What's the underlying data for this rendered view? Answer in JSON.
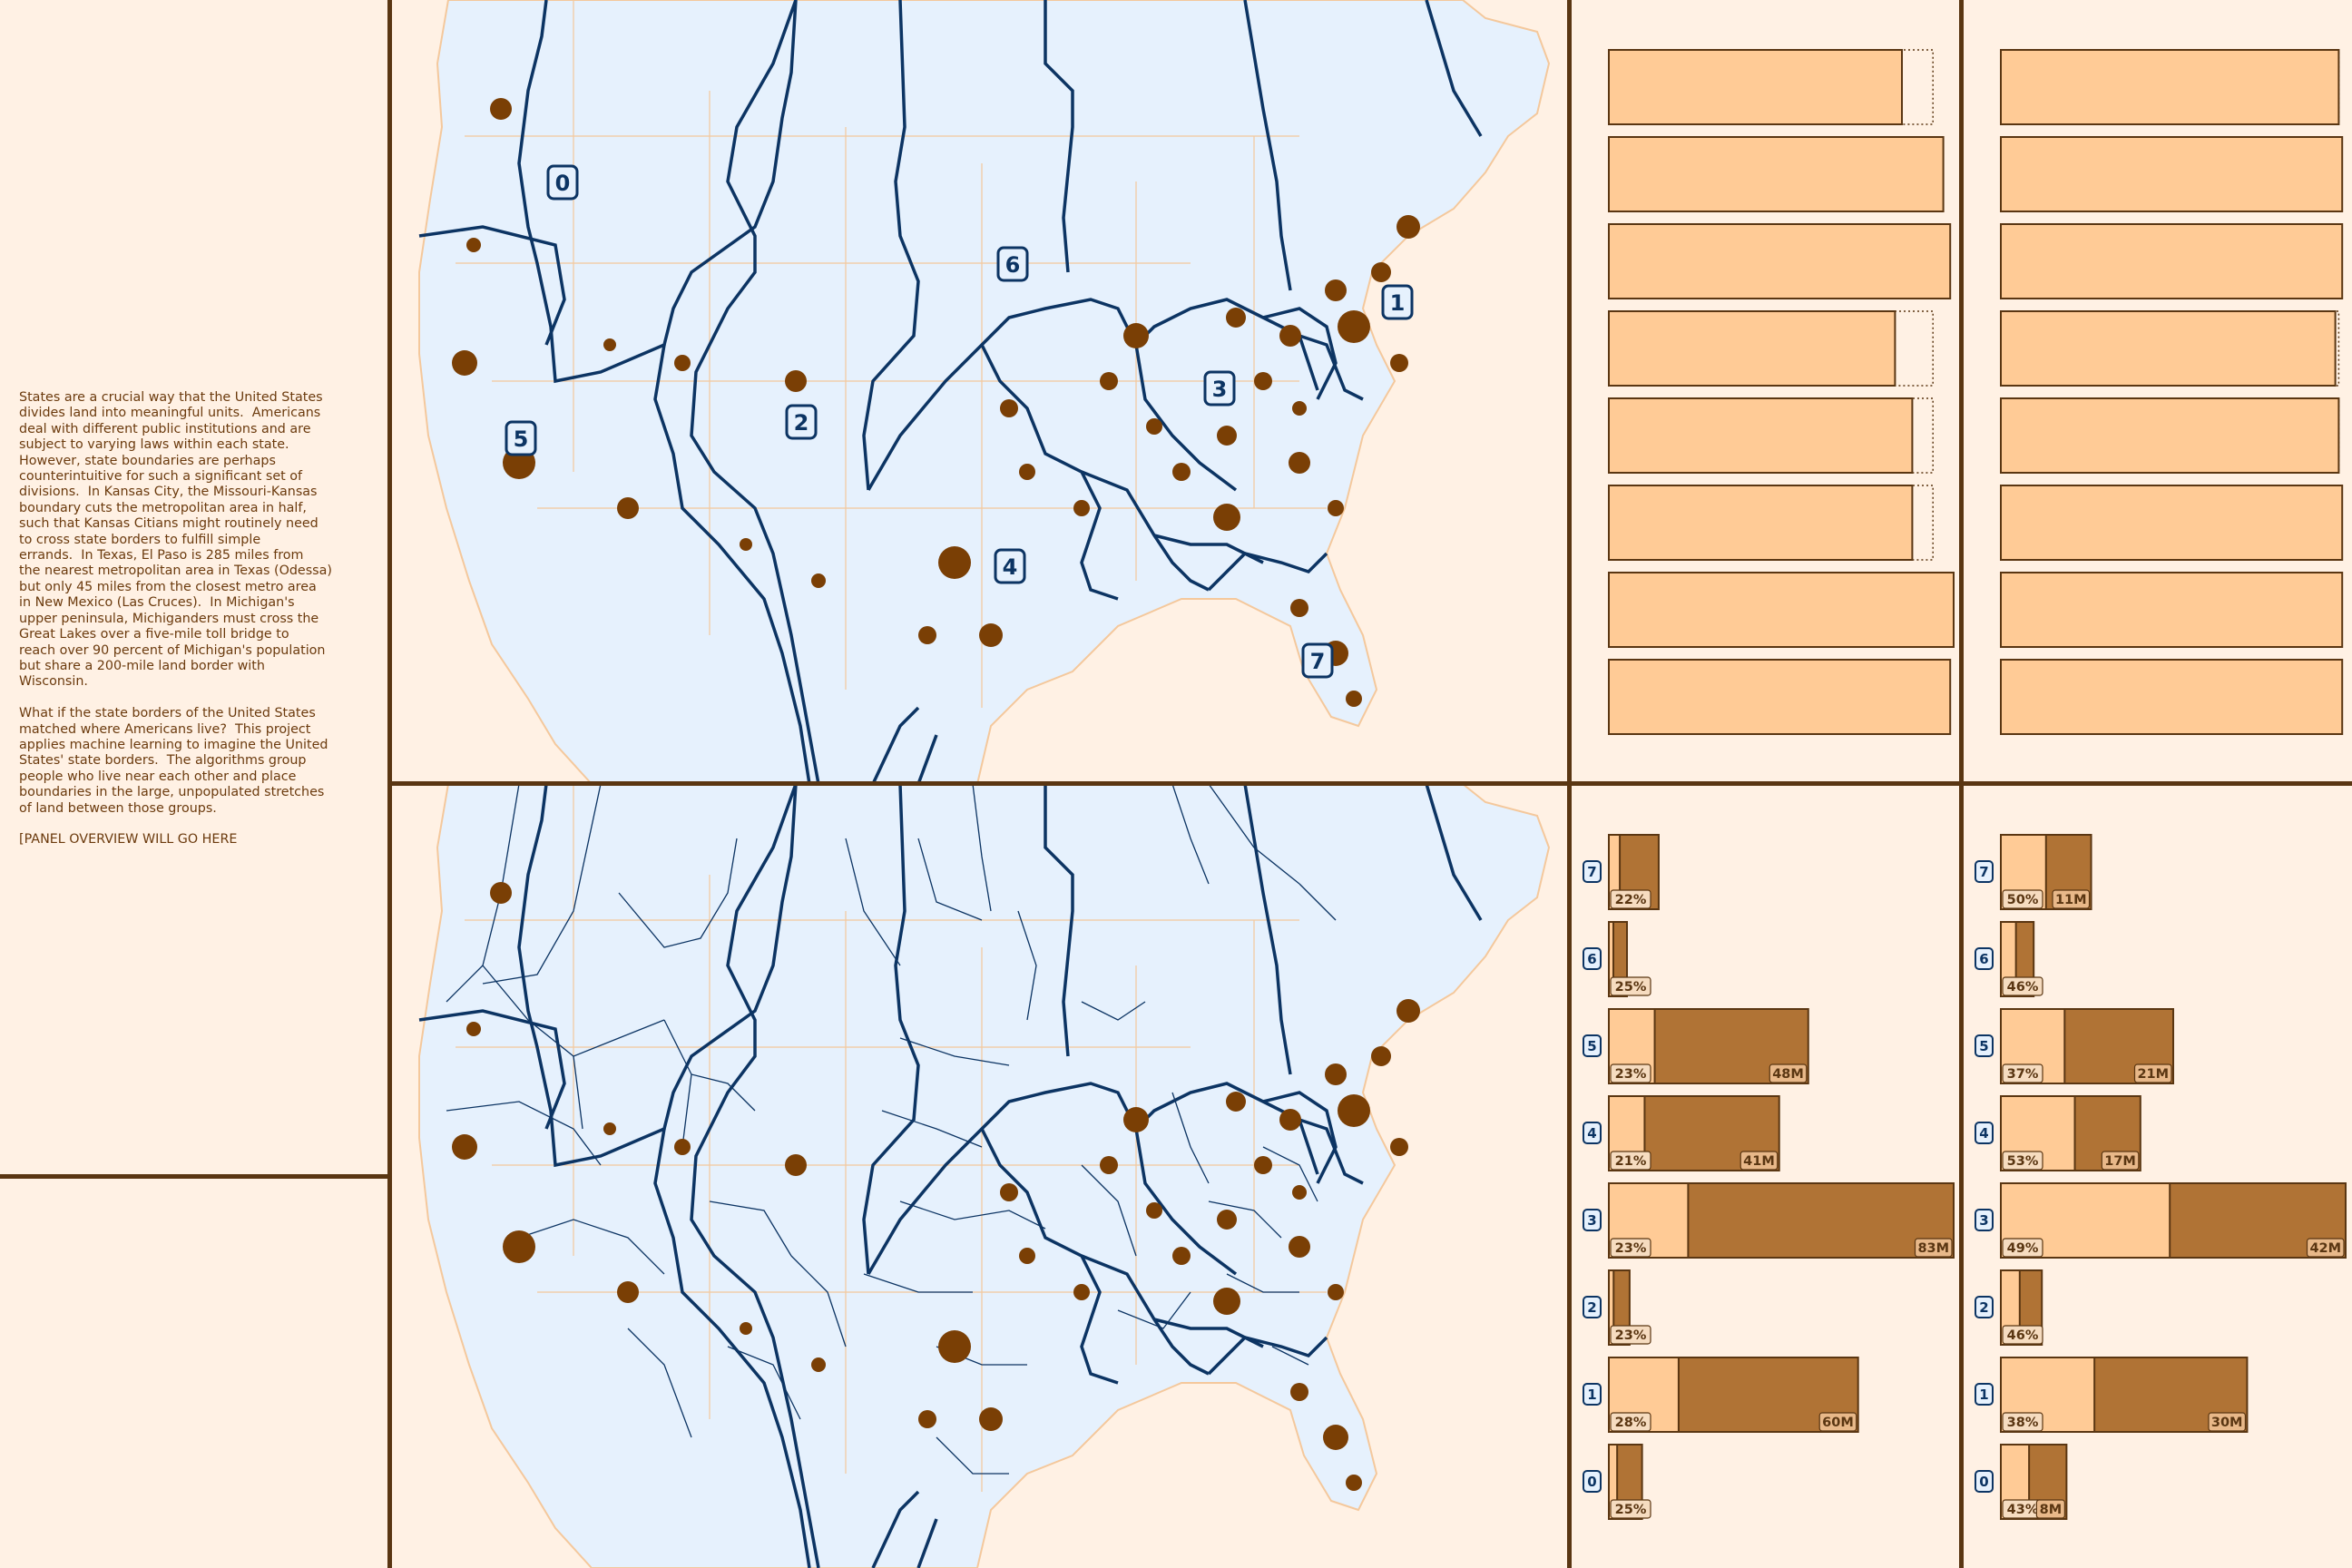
{
  "intro": {
    "text": "States are a crucial way that the United States\ndivides land into meaningful units.  Americans\ndeal with different public institutions and are\nsubject to varying laws within each state.\nHowever, state boundaries are perhaps\ncounterintuitive for such a significant set of\ndivisions.  In Kansas City, the Missouri-Kansas\nboundary cuts the metropolitan area in half,\nsuch that Kansas Citians might routinely need\nto cross state borders to fulfill simple\nerrands.  In Texas, El Paso is 285 miles from\nthe nearest metropolitan area in Texas (Odessa)\nbut only 45 miles from the closest metro area\nin New Mexico (Las Cruces).  In Michigan's\nupper peninsula, Michiganders must cross the\nGreat Lakes over a five-mile toll bridge to\nreach over 90 percent of Michigan's population\nbut share a 200-mile land border with\nWisconsin.\n\nWhat if the state borders of the United States\nmatched where Americans live?  This project\napplies machine learning to imagine the United\nStates' state borders.  The algorithms group\npeople who live near each other and place\nboundaries in the large, unpopulated stretches\nof land between those groups.\n\n[PANEL OVERVIEW WILL GO HERE"
  },
  "colors": {
    "background": "#fff1e4",
    "land": "#e6f1fd",
    "border": "#0c3463",
    "population": "#7a3f05",
    "bar_light": "#ffcb96",
    "bar_dark": "#b07335",
    "frame": "#5a3612"
  },
  "map": {
    "region_labels": [
      {
        "id": "0",
        "label": "0"
      },
      {
        "id": "1",
        "label": "1"
      },
      {
        "id": "2",
        "label": "2"
      },
      {
        "id": "3",
        "label": "3"
      },
      {
        "id": "4",
        "label": "4"
      },
      {
        "id": "5",
        "label": "5"
      },
      {
        "id": "6",
        "label": "6"
      },
      {
        "id": "7",
        "label": "7"
      }
    ]
  },
  "chart_data": [
    {
      "type": "bar",
      "panel": "top-left-bars",
      "orientation": "horizontal",
      "values": [
        0.85,
        0.97,
        0.99,
        0.83,
        0.88,
        0.88,
        1.0,
        0.99
      ],
      "targets": [
        0.94,
        0.96,
        0.98,
        0.94,
        0.94,
        0.94,
        0.97,
        0.97
      ],
      "xlim": [
        0,
        1
      ]
    },
    {
      "type": "bar",
      "panel": "top-right-bars",
      "orientation": "horizontal",
      "values": [
        0.98,
        0.99,
        0.99,
        0.97,
        0.98,
        0.99,
        0.99,
        0.99
      ],
      "targets": [
        0.98,
        0.98,
        0.98,
        0.98,
        0.98,
        0.98,
        0.98,
        0.98
      ],
      "xlim": [
        0,
        1
      ]
    },
    {
      "type": "bar",
      "panel": "bottom-left-bars",
      "orientation": "horizontal",
      "categories": [
        "7",
        "6",
        "5",
        "4",
        "3",
        "2",
        "1",
        "0"
      ],
      "values_millions": [
        12,
        4,
        48,
        41,
        83,
        5,
        60,
        8
      ],
      "percent_labels": [
        "22%",
        "25%",
        "23%",
        "21%",
        "23%",
        "23%",
        "28%",
        "25%"
      ],
      "total_labels": [
        "",
        "",
        "48M",
        "41M",
        "83M",
        "",
        "60M",
        ""
      ],
      "percent_values": [
        22,
        25,
        23,
        21,
        23,
        23,
        28,
        25
      ],
      "xlim": [
        0,
        83
      ]
    },
    {
      "type": "bar",
      "panel": "bottom-right-bars",
      "orientation": "horizontal",
      "categories": [
        "7",
        "6",
        "5",
        "4",
        "3",
        "2",
        "1",
        "0"
      ],
      "values_millions": [
        11,
        4,
        21,
        17,
        42,
        5,
        30,
        8
      ],
      "percent_labels": [
        "50%",
        "46%",
        "37%",
        "53%",
        "49%",
        "46%",
        "38%",
        "43%"
      ],
      "total_labels": [
        "11M",
        "",
        "21M",
        "17M",
        "42M",
        "",
        "30M",
        "8M"
      ],
      "percent_values": [
        50,
        46,
        37,
        53,
        49,
        46,
        38,
        43
      ],
      "xlim": [
        0,
        42
      ]
    }
  ]
}
